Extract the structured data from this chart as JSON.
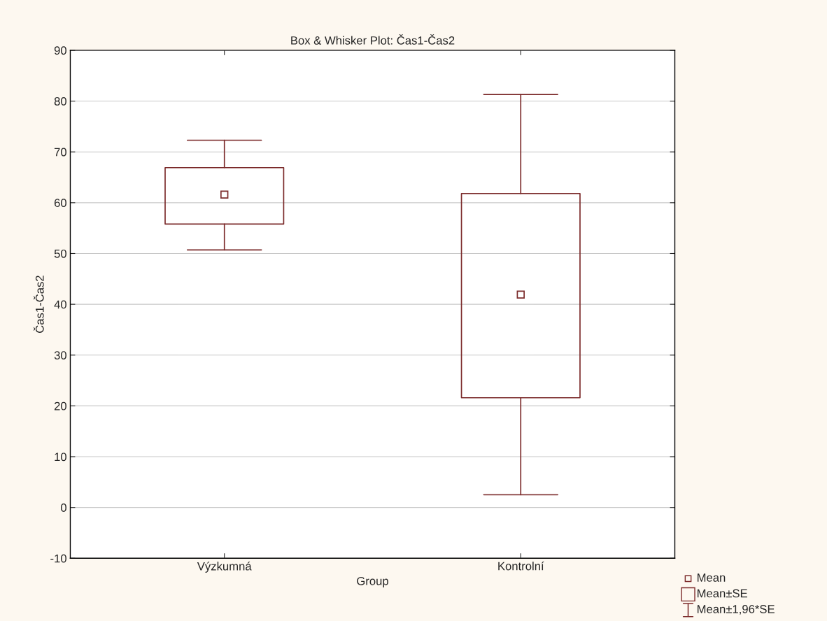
{
  "chart_data": {
    "type": "box",
    "title": "Box & Whisker Plot: Čas1-Čas2",
    "xlabel": "Group",
    "ylabel": "Čas1-Čas2",
    "categories": [
      "Výzkumná",
      "Kontrolní"
    ],
    "boxes": [
      {
        "low": 50.7,
        "q1": 55.8,
        "median": 61.6,
        "q3": 66.9,
        "high": 72.3
      },
      {
        "low": 2.5,
        "q1": 21.6,
        "median": 41.9,
        "q3": 61.8,
        "high": 81.3
      }
    ],
    "color": "#7b2a2a",
    "ylim": [
      -10,
      90
    ],
    "yticks": [
      -10,
      0,
      10,
      20,
      30,
      40,
      50,
      60,
      70,
      80,
      90
    ],
    "grid": "y",
    "annotations": [
      "Mean",
      "Mean±SE",
      "Mean±1,96*SE"
    ]
  }
}
